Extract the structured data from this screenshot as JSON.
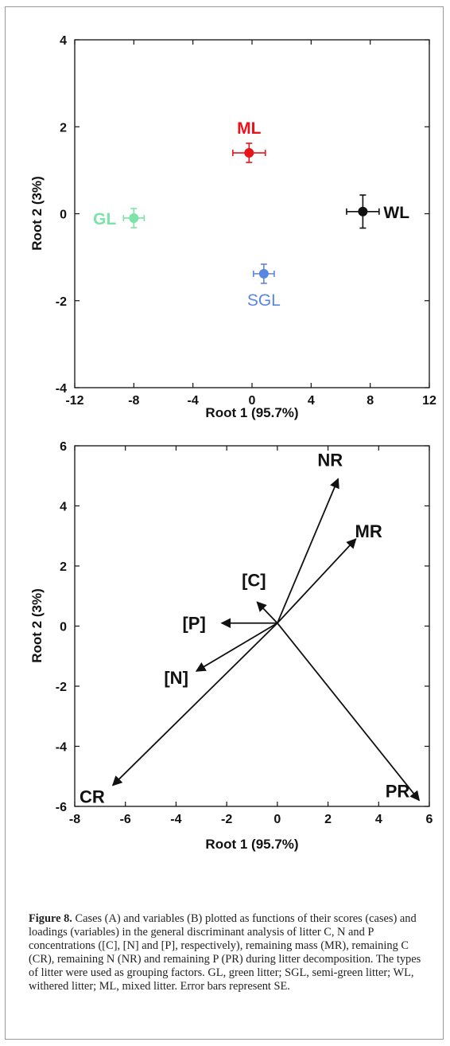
{
  "chart_data": [
    {
      "type": "scatter",
      "panel": "A",
      "xlabel": "Root 1 (95.7%)",
      "ylabel": "Root 2 (3%)",
      "xlim": [
        -12,
        12
      ],
      "ylim": [
        -4,
        4
      ],
      "xticks": [
        "-12",
        "-8",
        "-4",
        "0",
        "4",
        "8",
        "12"
      ],
      "yticks": [
        "-4",
        "-2",
        "0",
        "2",
        "4"
      ],
      "grid": false,
      "points": [
        {
          "label": "ML",
          "x": -0.2,
          "y": 1.4,
          "xerr": 1.1,
          "yerr": 0.22,
          "color": "#e8141a"
        },
        {
          "label": "GL",
          "x": -8.0,
          "y": -0.1,
          "xerr": 0.7,
          "yerr": 0.22,
          "color": "#7de3a6"
        },
        {
          "label": "WL",
          "x": 7.5,
          "y": 0.05,
          "xerr": 1.1,
          "yerr": 0.38,
          "color": "#111111"
        },
        {
          "label": "SGL",
          "x": 0.8,
          "y": -1.38,
          "xerr": 0.7,
          "yerr": 0.22,
          "color": "#5b86e0"
        }
      ]
    },
    {
      "type": "vector",
      "panel": "B",
      "xlabel": "Root 1 (95.7%)",
      "ylabel": "Root 2 (3%)",
      "xlim": [
        -8,
        6
      ],
      "ylim": [
        -6,
        6
      ],
      "xticks": [
        "-8",
        "-6",
        "-4",
        "-2",
        "0",
        "2",
        "4",
        "6"
      ],
      "yticks": [
        "-6",
        "-4",
        "-2",
        "0",
        "2",
        "4",
        "6"
      ],
      "grid": false,
      "origin": [
        0,
        0.1
      ],
      "vectors": [
        {
          "label": "NR",
          "x": 2.4,
          "y": 4.9
        },
        {
          "label": "MR",
          "x": 3.1,
          "y": 2.9
        },
        {
          "label": "[C]",
          "x": -0.8,
          "y": 0.8
        },
        {
          "label": "[P]",
          "x": -2.2,
          "y": 0.1
        },
        {
          "label": "[N]",
          "x": -3.2,
          "y": -1.5
        },
        {
          "label": "CR",
          "x": -6.5,
          "y": -5.3
        },
        {
          "label": "PR",
          "x": 5.6,
          "y": -5.8
        }
      ]
    }
  ],
  "caption": {
    "lead": "Figure 8.",
    "text": " Cases (A) and variables (B) plotted as functions of their scores (cases) and loadings (variables) in the general discriminant analysis of litter C, N and P concentrations ([C], [N] and [P], respectively), remaining mass (MR), remaining C (CR), remaining N (NR) and remaining P (PR) during litter decomposition. The types of litter were used as grouping factors. GL, green litter; SGL, semi-green litter; WL, withered litter; ML, mixed litter. Error bars represent SE."
  }
}
